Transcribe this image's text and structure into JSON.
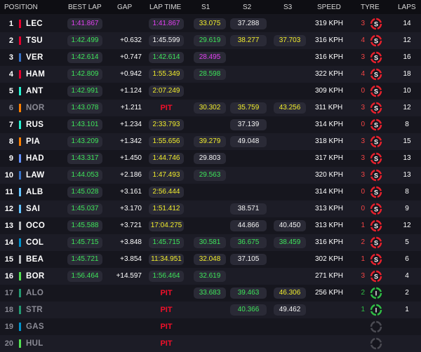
{
  "colors": {
    "purple": "#e040f0",
    "green": "#3ee45a",
    "yellow": "#f0ec2c",
    "white": "#f4f4f4",
    "pit": "#f0102a",
    "soft_tyre": "#e8202c",
    "inter_tyre": "#2fbf44"
  },
  "header": {
    "position": "POSITION",
    "best_lap": "BEST LAP",
    "gap": "GAP",
    "lap_time": "LAP TIME",
    "s1": "S1",
    "s2": "S2",
    "s3": "S3",
    "speed": "SPEED",
    "tyre": "TYRE",
    "laps": "LAPS"
  },
  "rows": [
    {
      "pos": "1",
      "driver": "LEC",
      "team_color": "#e8002d",
      "best": "1:41.867",
      "best_c": "purple",
      "gap": "",
      "lap": "1:41.867",
      "lap_c": "purple",
      "s1": "33.075",
      "s1_c": "yellow",
      "s2": "37.288",
      "s2_c": "white",
      "s3": "",
      "s3_c": "",
      "speed": "319 KPH",
      "tyre_num": "3",
      "tyre_num_c": "red",
      "tyre": "S",
      "tyre_c": "soft_tyre",
      "laps": "14",
      "out": false
    },
    {
      "pos": "2",
      "driver": "TSU",
      "team_color": "#e8002d",
      "best": "1:42.499",
      "best_c": "green",
      "gap": "+0.632",
      "lap": "1:45.599",
      "lap_c": "white",
      "s1": "29.619",
      "s1_c": "green",
      "s2": "38.277",
      "s2_c": "yellow",
      "s3": "37.703",
      "s3_c": "yellow",
      "speed": "316 KPH",
      "tyre_num": "4",
      "tyre_num_c": "red",
      "tyre": "S",
      "tyre_c": "soft_tyre",
      "laps": "12",
      "out": false
    },
    {
      "pos": "3",
      "driver": "VER",
      "team_color": "#3671c6",
      "best": "1:42.614",
      "best_c": "green",
      "gap": "+0.747",
      "lap": "1:42.614",
      "lap_c": "green",
      "s1": "28.495",
      "s1_c": "purple",
      "s2": "",
      "s2_c": "",
      "s3": "",
      "s3_c": "",
      "speed": "316 KPH",
      "tyre_num": "3",
      "tyre_num_c": "red",
      "tyre": "S",
      "tyre_c": "soft_tyre",
      "laps": "16",
      "out": false
    },
    {
      "pos": "4",
      "driver": "HAM",
      "team_color": "#e8002d",
      "best": "1:42.809",
      "best_c": "green",
      "gap": "+0.942",
      "lap": "1:55.349",
      "lap_c": "yellow",
      "s1": "28.598",
      "s1_c": "green",
      "s2": "",
      "s2_c": "",
      "s3": "",
      "s3_c": "",
      "speed": "322 KPH",
      "tyre_num": "4",
      "tyre_num_c": "red",
      "tyre": "S",
      "tyre_c": "soft_tyre",
      "laps": "18",
      "out": false
    },
    {
      "pos": "5",
      "driver": "ANT",
      "team_color": "#27f4d2",
      "best": "1:42.991",
      "best_c": "green",
      "gap": "+1.124",
      "lap": "2:07.249",
      "lap_c": "yellow",
      "s1": "",
      "s1_c": "",
      "s2": "",
      "s2_c": "",
      "s3": "",
      "s3_c": "",
      "speed": "309 KPH",
      "tyre_num": "0",
      "tyre_num_c": "red",
      "tyre": "S",
      "tyre_c": "soft_tyre",
      "laps": "10",
      "out": false
    },
    {
      "pos": "6",
      "driver": "NOR",
      "team_color": "#ff8000",
      "best": "1:43.078",
      "best_c": "green",
      "gap": "+1.211",
      "lap": "PIT",
      "lap_c": "pit",
      "s1": "30.302",
      "s1_c": "yellow",
      "s2": "35.759",
      "s2_c": "yellow",
      "s3": "43.256",
      "s3_c": "yellow",
      "speed": "311 KPH",
      "tyre_num": "3",
      "tyre_num_c": "red",
      "tyre": "S",
      "tyre_c": "soft_tyre",
      "laps": "12",
      "out": true
    },
    {
      "pos": "7",
      "driver": "RUS",
      "team_color": "#27f4d2",
      "best": "1:43.101",
      "best_c": "green",
      "gap": "+1.234",
      "lap": "2:33.793",
      "lap_c": "yellow",
      "s1": "",
      "s1_c": "",
      "s2": "37.139",
      "s2_c": "white",
      "s3": "",
      "s3_c": "",
      "speed": "314 KPH",
      "tyre_num": "0",
      "tyre_num_c": "red",
      "tyre": "S",
      "tyre_c": "soft_tyre",
      "laps": "8",
      "out": false
    },
    {
      "pos": "8",
      "driver": "PIA",
      "team_color": "#ff8000",
      "best": "1:43.209",
      "best_c": "green",
      "gap": "+1.342",
      "lap": "1:55.656",
      "lap_c": "yellow",
      "s1": "39.279",
      "s1_c": "yellow",
      "s2": "49.048",
      "s2_c": "white",
      "s3": "",
      "s3_c": "",
      "speed": "318 KPH",
      "tyre_num": "3",
      "tyre_num_c": "red",
      "tyre": "S",
      "tyre_c": "soft_tyre",
      "laps": "15",
      "out": false
    },
    {
      "pos": "9",
      "driver": "HAD",
      "team_color": "#6692ff",
      "best": "1:43.317",
      "best_c": "green",
      "gap": "+1.450",
      "lap": "1:44.746",
      "lap_c": "yellow",
      "s1": "29.803",
      "s1_c": "white",
      "s2": "",
      "s2_c": "",
      "s3": "",
      "s3_c": "",
      "speed": "317 KPH",
      "tyre_num": "3",
      "tyre_num_c": "red",
      "tyre": "S",
      "tyre_c": "soft_tyre",
      "laps": "13",
      "out": false
    },
    {
      "pos": "10",
      "driver": "LAW",
      "team_color": "#3671c6",
      "best": "1:44.053",
      "best_c": "green",
      "gap": "+2.186",
      "lap": "1:47.493",
      "lap_c": "yellow",
      "s1": "29.563",
      "s1_c": "green",
      "s2": "",
      "s2_c": "",
      "s3": "",
      "s3_c": "",
      "speed": "320 KPH",
      "tyre_num": "3",
      "tyre_num_c": "red",
      "tyre": "S",
      "tyre_c": "soft_tyre",
      "laps": "13",
      "out": false
    },
    {
      "pos": "11",
      "driver": "ALB",
      "team_color": "#64c4ff",
      "best": "1:45.028",
      "best_c": "green",
      "gap": "+3.161",
      "lap": "2:56.444",
      "lap_c": "yellow",
      "s1": "",
      "s1_c": "",
      "s2": "",
      "s2_c": "",
      "s3": "",
      "s3_c": "",
      "speed": "314 KPH",
      "tyre_num": "0",
      "tyre_num_c": "red",
      "tyre": "S",
      "tyre_c": "soft_tyre",
      "laps": "8",
      "out": false
    },
    {
      "pos": "12",
      "driver": "SAI",
      "team_color": "#64c4ff",
      "best": "1:45.037",
      "best_c": "green",
      "gap": "+3.170",
      "lap": "1:51.412",
      "lap_c": "yellow",
      "s1": "",
      "s1_c": "",
      "s2": "38.571",
      "s2_c": "white",
      "s3": "",
      "s3_c": "",
      "speed": "313 KPH",
      "tyre_num": "0",
      "tyre_num_c": "red",
      "tyre": "S",
      "tyre_c": "soft_tyre",
      "laps": "9",
      "out": false
    },
    {
      "pos": "13",
      "driver": "OCO",
      "team_color": "#b6babd",
      "best": "1:45.588",
      "best_c": "green",
      "gap": "+3.721",
      "lap": "17:04.275",
      "lap_c": "yellow",
      "s1": "",
      "s1_c": "",
      "s2": "44.866",
      "s2_c": "white",
      "s3": "40.450",
      "s3_c": "white",
      "speed": "313 KPH",
      "tyre_num": "1",
      "tyre_num_c": "red",
      "tyre": "S",
      "tyre_c": "soft_tyre",
      "laps": "12",
      "out": false
    },
    {
      "pos": "14",
      "driver": "COL",
      "team_color": "#0093cc",
      "best": "1:45.715",
      "best_c": "green",
      "gap": "+3.848",
      "lap": "1:45.715",
      "lap_c": "green",
      "s1": "30.581",
      "s1_c": "green",
      "s2": "36.675",
      "s2_c": "green",
      "s3": "38.459",
      "s3_c": "green",
      "speed": "316 KPH",
      "tyre_num": "2",
      "tyre_num_c": "red",
      "tyre": "S",
      "tyre_c": "soft_tyre",
      "laps": "5",
      "out": false
    },
    {
      "pos": "15",
      "driver": "BEA",
      "team_color": "#b6babd",
      "best": "1:45.721",
      "best_c": "green",
      "gap": "+3.854",
      "lap": "11:34.951",
      "lap_c": "yellow",
      "s1": "32.048",
      "s1_c": "yellow",
      "s2": "37.105",
      "s2_c": "white",
      "s3": "",
      "s3_c": "",
      "speed": "302 KPH",
      "tyre_num": "1",
      "tyre_num_c": "red",
      "tyre": "S",
      "tyre_c": "soft_tyre",
      "laps": "6",
      "out": false
    },
    {
      "pos": "16",
      "driver": "BOR",
      "team_color": "#52e252",
      "best": "1:56.464",
      "best_c": "green",
      "gap": "+14.597",
      "lap": "1:56.464",
      "lap_c": "green",
      "s1": "32.619",
      "s1_c": "green",
      "s2": "",
      "s2_c": "",
      "s3": "",
      "s3_c": "",
      "speed": "271 KPH",
      "tyre_num": "3",
      "tyre_num_c": "red",
      "tyre": "S",
      "tyre_c": "soft_tyre",
      "laps": "4",
      "out": false
    },
    {
      "pos": "17",
      "driver": "ALO",
      "team_color": "#229971",
      "best": "",
      "best_c": "",
      "gap": "",
      "lap": "PIT",
      "lap_c": "pit",
      "s1": "33.683",
      "s1_c": "green",
      "s2": "39.463",
      "s2_c": "green",
      "s3": "46.306",
      "s3_c": "yellow",
      "speed": "256 KPH",
      "tyre_num": "2",
      "tyre_num_c": "green",
      "tyre": "I",
      "tyre_c": "inter_tyre",
      "laps": "2",
      "out": true
    },
    {
      "pos": "18",
      "driver": "STR",
      "team_color": "#229971",
      "best": "",
      "best_c": "",
      "gap": "",
      "lap": "PIT",
      "lap_c": "pit",
      "s1": "",
      "s1_c": "",
      "s2": "40.366",
      "s2_c": "green",
      "s3": "49.462",
      "s3_c": "white",
      "speed": "",
      "tyre_num": "1",
      "tyre_num_c": "green",
      "tyre": "I",
      "tyre_c": "inter_tyre",
      "laps": "1",
      "out": true
    },
    {
      "pos": "19",
      "driver": "GAS",
      "team_color": "#0093cc",
      "best": "",
      "best_c": "",
      "gap": "",
      "lap": "PIT",
      "lap_c": "pit",
      "s1": "",
      "s1_c": "",
      "s2": "",
      "s2_c": "",
      "s3": "",
      "s3_c": "",
      "speed": "",
      "tyre_num": "",
      "tyre_num_c": "",
      "tyre": "",
      "tyre_c": "grey",
      "laps": "",
      "out": true
    },
    {
      "pos": "20",
      "driver": "HUL",
      "team_color": "#52e252",
      "best": "",
      "best_c": "",
      "gap": "",
      "lap": "PIT",
      "lap_c": "pit",
      "s1": "",
      "s1_c": "",
      "s2": "",
      "s2_c": "",
      "s3": "",
      "s3_c": "",
      "speed": "",
      "tyre_num": "",
      "tyre_num_c": "",
      "tyre": "",
      "tyre_c": "grey",
      "laps": "",
      "out": true
    }
  ]
}
